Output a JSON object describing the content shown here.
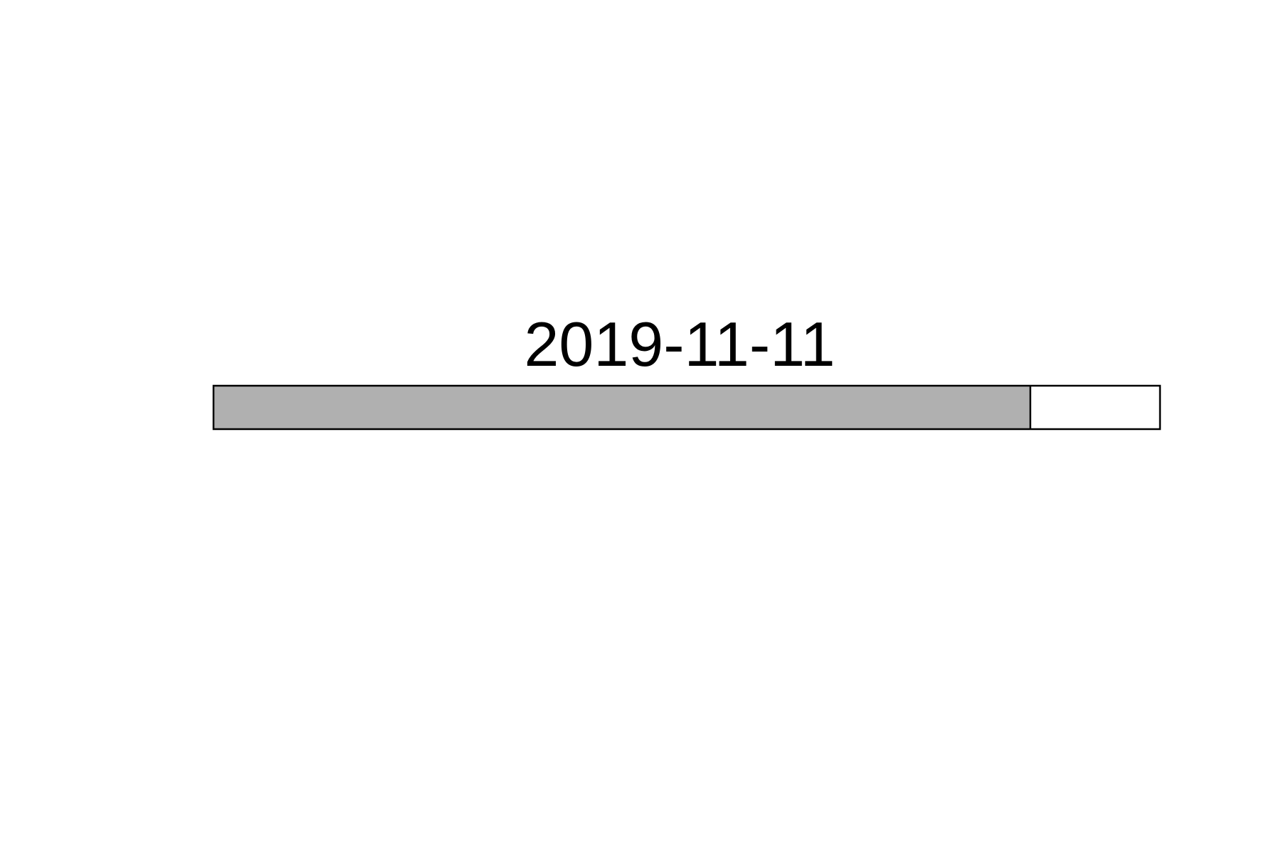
{
  "chart_data": {
    "type": "bar",
    "label": "2019-11-11",
    "progress": 0.863,
    "colors": {
      "fill": "#b0b0b0",
      "track": "#ffffff",
      "border": "#000000"
    }
  }
}
